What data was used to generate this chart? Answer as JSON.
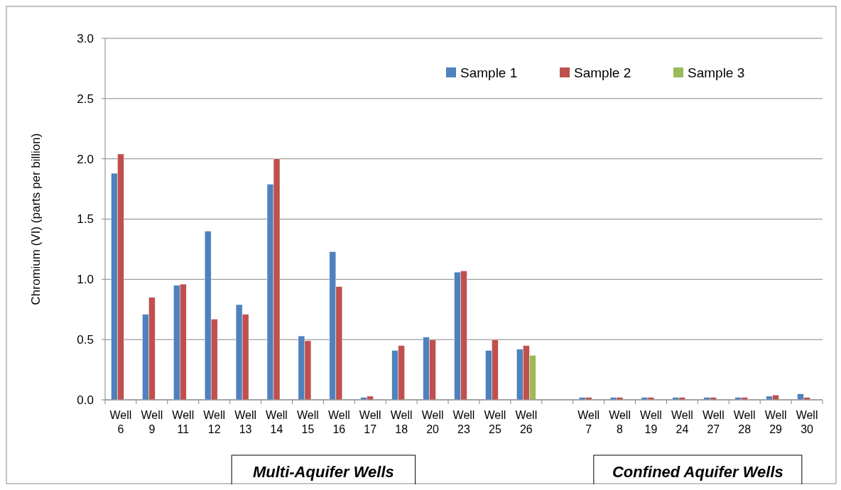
{
  "chart_data": {
    "type": "bar",
    "ylabel": "Chromium (VI) (parts per billion)",
    "categories": [
      "Well 6",
      "Well 9",
      "Well 11",
      "Well 12",
      "Well 13",
      "Well 14",
      "Well 15",
      "Well 16",
      "Well 17",
      "Well 18",
      "Well 20",
      "Well 23",
      "Well 25",
      "Well 26",
      null,
      "Well 7",
      "Well 8",
      "Well 19",
      "Well 24",
      "Well 27",
      "Well 28",
      "Well 29",
      "Well 30"
    ],
    "series": [
      {
        "name": "Sample 1",
        "color": "#4f81bd",
        "values": [
          1.88,
          0.71,
          0.95,
          1.4,
          0.79,
          1.79,
          0.53,
          1.23,
          0.02,
          0.41,
          0.52,
          1.06,
          0.41,
          0.42,
          null,
          0.02,
          0.02,
          0.02,
          0.02,
          0.02,
          0.02,
          0.03,
          0.05
        ]
      },
      {
        "name": "Sample 2",
        "color": "#c0504d",
        "values": [
          2.04,
          0.85,
          0.96,
          0.67,
          0.71,
          2.0,
          0.49,
          0.94,
          0.03,
          0.45,
          0.5,
          1.07,
          0.5,
          0.45,
          null,
          0.02,
          0.02,
          0.02,
          0.02,
          0.02,
          0.02,
          0.04,
          0.02
        ]
      },
      {
        "name": "Sample 3",
        "color": "#9bbb59",
        "values": [
          null,
          null,
          null,
          null,
          null,
          null,
          null,
          null,
          null,
          null,
          null,
          null,
          null,
          0.37,
          null,
          null,
          null,
          null,
          null,
          null,
          null,
          null,
          null
        ]
      }
    ],
    "ylim": [
      0,
      3
    ],
    "yticks": [
      {
        "value": 0,
        "label": "0.0"
      },
      {
        "value": 0.5,
        "label": "0.5"
      },
      {
        "value": 1,
        "label": "1.0"
      },
      {
        "value": 1.5,
        "label": "1.5"
      },
      {
        "value": 2,
        "label": "2.0"
      },
      {
        "value": 2.5,
        "label": "2.5"
      },
      {
        "value": 3,
        "label": "3.0"
      }
    ],
    "grid": "y",
    "legend": "top right",
    "annotations": [
      "Multi-Aquifer Wells",
      "Confined Aquifer Wells"
    ]
  }
}
